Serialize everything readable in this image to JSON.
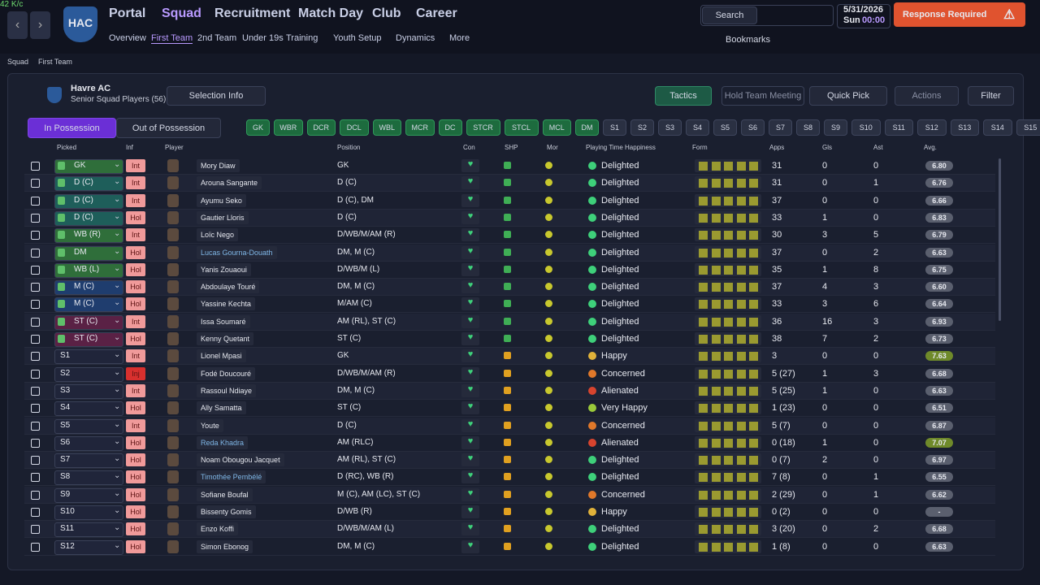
{
  "overlay": "42 K/c",
  "nav": {
    "club": "HAC",
    "menus": [
      "Portal",
      "Squad",
      "Recruitment",
      "Match Day",
      "Club",
      "Career"
    ],
    "submenus": [
      "Overview",
      "First Team",
      "2nd Team",
      "Under 19s",
      "Training",
      "Youth Setup",
      "Dynamics",
      "More"
    ],
    "search": "Search",
    "date": "5/31/2026",
    "day": "Sun",
    "time": "00:00",
    "alert": "Response Required",
    "bookmarks": "Bookmarks"
  },
  "breadcrumb": [
    "Squad",
    "First Team"
  ],
  "panel": {
    "team": "Havre AC",
    "subtitle": "Senior Squad Players (56)",
    "selection_info": "Selection Info",
    "tactics": "Tactics",
    "meeting": "Hold Team Meeting",
    "quick_pick": "Quick Pick",
    "actions": "Actions",
    "filter": "Filter",
    "tabs": [
      "In Possession",
      "Out of Possession"
    ],
    "positions": [
      "GK",
      "WBR",
      "DCR",
      "DCL",
      "WBL",
      "MCR",
      "DC",
      "STCR",
      "STCL",
      "MCL",
      "DM"
    ],
    "subs": [
      "S1",
      "S2",
      "S3",
      "S4",
      "S5",
      "S6",
      "S7",
      "S8",
      "S9",
      "S10",
      "S11",
      "S12",
      "S13",
      "S14",
      "S15"
    ]
  },
  "table": {
    "columns": [
      "Picked",
      "Inf",
      "Player",
      "Position",
      "Con",
      "SHP",
      "Mor",
      "Playing Time Happiness",
      "Form",
      "Apps",
      "Gls",
      "Ast",
      "Avg."
    ],
    "rows": [
      {
        "picked": "GK",
        "picked_color": "#2f6e3a",
        "inf": "Int",
        "player": "Mory Diaw",
        "position": "GK",
        "happiness": "Delighted",
        "apps": "31",
        "gls": "0",
        "ast": "0",
        "avg": "6.80"
      },
      {
        "picked": "D (C)",
        "picked_color": "#1e5e5a",
        "inf": "Int",
        "player": "Arouna Sangante",
        "position": "D (C)",
        "happiness": "Delighted",
        "apps": "31",
        "gls": "0",
        "ast": "1",
        "avg": "6.76"
      },
      {
        "picked": "D (C)",
        "picked_color": "#1e5e5a",
        "inf": "Int",
        "player": "Ayumu Seko",
        "position": "D (C), DM",
        "happiness": "Delighted",
        "apps": "37",
        "gls": "0",
        "ast": "0",
        "avg": "6.66"
      },
      {
        "picked": "D (C)",
        "picked_color": "#1e5e5a",
        "inf": "Hol",
        "player": "Gautier Lloris",
        "position": "D (C)",
        "happiness": "Delighted",
        "apps": "33",
        "gls": "1",
        "ast": "0",
        "avg": "6.83"
      },
      {
        "picked": "WB (R)",
        "picked_color": "#2f6e3a",
        "inf": "Int",
        "player": "Loïc Nego",
        "position": "D/WB/M/AM (R)",
        "happiness": "Delighted",
        "apps": "30",
        "gls": "3",
        "ast": "5",
        "avg": "6.79"
      },
      {
        "picked": "DM",
        "picked_color": "#2f6e3a",
        "inf": "Hol",
        "player": "Lucas Gourna-Douath",
        "position": "DM, M (C)",
        "happiness": "Delighted",
        "apps": "37",
        "gls": "0",
        "ast": "2",
        "avg": "6.63",
        "name_color": "#7fb6e6"
      },
      {
        "picked": "WB (L)",
        "picked_color": "#2f6e3a",
        "inf": "Hol",
        "player": "Yanis Zouaoui",
        "position": "D/WB/M (L)",
        "happiness": "Delighted",
        "apps": "35",
        "gls": "1",
        "ast": "8",
        "avg": "6.75"
      },
      {
        "picked": "M (C)",
        "picked_color": "#1f3d6e",
        "inf": "Hol",
        "player": "Abdoulaye Touré",
        "position": "DM, M (C)",
        "happiness": "Delighted",
        "apps": "37",
        "gls": "4",
        "ast": "3",
        "avg": "6.60"
      },
      {
        "picked": "M (C)",
        "picked_color": "#1f3d6e",
        "inf": "Hol",
        "player": "Yassine Kechta",
        "position": "M/AM (C)",
        "happiness": "Delighted",
        "apps": "33",
        "gls": "3",
        "ast": "6",
        "avg": "6.64"
      },
      {
        "picked": "ST (C)",
        "picked_color": "#5a2145",
        "inf": "Int",
        "player": "Issa Soumaré",
        "position": "AM (RL), ST (C)",
        "happiness": "Delighted",
        "apps": "36",
        "gls": "16",
        "ast": "3",
        "avg": "6.93"
      },
      {
        "picked": "ST (C)",
        "picked_color": "#5a2145",
        "inf": "Hol",
        "player": "Kenny Quetant",
        "position": "ST (C)",
        "happiness": "Delighted",
        "apps": "38",
        "gls": "7",
        "ast": "2",
        "avg": "6.73"
      },
      {
        "picked": "S1",
        "inf": "Int",
        "player": "Lionel Mpasi",
        "position": "GK",
        "happiness": "Happy",
        "mood_color": "#e0b23a",
        "apps": "3",
        "gls": "0",
        "ast": "0",
        "avg": "7.63",
        "avg_color": "#6f8a2a"
      },
      {
        "picked": "S2",
        "inf": "Inj",
        "inf_color": "#d8302e",
        "player": "Fodé Doucouré",
        "position": "D/WB/M/AM (R)",
        "happiness": "Concerned",
        "mood_color": "#e0782a",
        "apps": "5 (27)",
        "gls": "1",
        "ast": "3",
        "avg": "6.68"
      },
      {
        "picked": "S3",
        "inf": "Int",
        "player": "Rassoul Ndiaye",
        "position": "DM, M (C)",
        "happiness": "Alienated",
        "mood_color": "#d8442e",
        "apps": "5 (25)",
        "gls": "1",
        "ast": "0",
        "avg": "6.63"
      },
      {
        "picked": "S4",
        "inf": "Hol",
        "player": "Ally Samatta",
        "position": "ST (C)",
        "happiness": "Very Happy",
        "mood_color": "#9ac93a",
        "apps": "1 (23)",
        "gls": "0",
        "ast": "0",
        "avg": "6.51"
      },
      {
        "picked": "S5",
        "inf": "Int",
        "player": "Youte",
        "position": "D (C)",
        "happiness": "Concerned",
        "mood_color": "#e0782a",
        "apps": "5 (7)",
        "gls": "0",
        "ast": "0",
        "avg": "6.87"
      },
      {
        "picked": "S6",
        "inf": "Hol",
        "player": "Reda Khadra",
        "position": "AM (RLC)",
        "happiness": "Alienated",
        "mood_color": "#d8442e",
        "apps": "0 (18)",
        "gls": "1",
        "ast": "0",
        "avg": "7.07",
        "name_color": "#7fb6e6",
        "avg_color": "#6f8a2a"
      },
      {
        "picked": "S7",
        "inf": "Hol",
        "player": "Noam Obougou Jacquet",
        "position": "AM (RL), ST (C)",
        "happiness": "Delighted",
        "apps": "0 (7)",
        "gls": "2",
        "ast": "0",
        "avg": "6.97"
      },
      {
        "picked": "S8",
        "inf": "Hol",
        "player": "Timothée Pembélé",
        "position": "D (RC), WB (R)",
        "happiness": "Delighted",
        "apps": "7 (8)",
        "gls": "0",
        "ast": "1",
        "avg": "6.55",
        "name_color": "#7fb6e6"
      },
      {
        "picked": "S9",
        "inf": "Hol",
        "player": "Sofiane Boufal",
        "position": "M (C), AM (LC), ST (C)",
        "happiness": "Concerned",
        "mood_color": "#e0782a",
        "apps": "2 (29)",
        "gls": "0",
        "ast": "1",
        "avg": "6.62"
      },
      {
        "picked": "S10",
        "inf": "Hol",
        "player": "Bissenty Gomis",
        "position": "D/WB (R)",
        "happiness": "Happy",
        "mood_color": "#e0b23a",
        "apps": "0 (2)",
        "gls": "0",
        "ast": "0",
        "avg": "-"
      },
      {
        "picked": "S11",
        "inf": "Hol",
        "player": "Enzo Koffi",
        "position": "D/WB/M/AM (L)",
        "happiness": "Delighted",
        "apps": "3 (20)",
        "gls": "0",
        "ast": "2",
        "avg": "6.68"
      },
      {
        "picked": "S12",
        "inf": "Hol",
        "player": "Simon Ebonog",
        "position": "DM, M (C)",
        "happiness": "Delighted",
        "apps": "1 (8)",
        "gls": "0",
        "ast": "0",
        "avg": "6.63"
      }
    ]
  }
}
